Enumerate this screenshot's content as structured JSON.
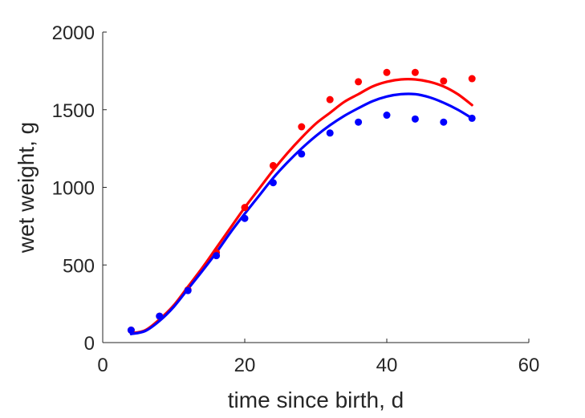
{
  "chart_data": {
    "type": "scatter",
    "title": "",
    "xlabel": "time since birth, d",
    "ylabel": "wet weight, g",
    "xlim": [
      0,
      60
    ],
    "ylim": [
      0,
      2000
    ],
    "xticks": [
      0,
      20,
      40,
      60
    ],
    "yticks": [
      0,
      500,
      1000,
      1500,
      2000
    ],
    "xtick_labels": [
      "0",
      "20",
      "40",
      "60"
    ],
    "ytick_labels": [
      "0",
      "500",
      "1000",
      "1500",
      "2000"
    ],
    "grid": false,
    "legend": "none",
    "series": [
      {
        "color": "#ff0000",
        "x": [
          4,
          8,
          12,
          16,
          20,
          24,
          28,
          32,
          36,
          40,
          44,
          48,
          52
        ],
        "y": [
          80,
          170,
          340,
          580,
          870,
          1140,
          1390,
          1565,
          1680,
          1740,
          1740,
          1685,
          1700
        ],
        "fit_x": [
          4,
          6,
          8,
          10,
          12,
          14,
          16,
          18,
          20,
          22,
          24,
          26,
          28,
          30,
          32,
          34,
          36,
          38,
          40,
          42,
          44,
          46,
          48,
          50,
          52
        ],
        "fit_y": [
          60,
          80,
          150,
          240,
          360,
          480,
          610,
          740,
          870,
          990,
          1110,
          1220,
          1320,
          1410,
          1480,
          1550,
          1600,
          1650,
          1680,
          1695,
          1695,
          1680,
          1650,
          1600,
          1530
        ]
      },
      {
        "color": "#0000ff",
        "x": [
          4,
          8,
          12,
          16,
          20,
          24,
          28,
          32,
          36,
          40,
          44,
          48,
          52
        ],
        "y": [
          80,
          170,
          335,
          560,
          800,
          1030,
          1215,
          1350,
          1420,
          1465,
          1440,
          1420,
          1445
        ],
        "fit_x": [
          4,
          6,
          8,
          10,
          12,
          14,
          16,
          18,
          20,
          22,
          24,
          26,
          28,
          30,
          32,
          34,
          36,
          38,
          40,
          42,
          44,
          46,
          48,
          50,
          52
        ],
        "fit_y": [
          55,
          75,
          140,
          230,
          345,
          460,
          580,
          710,
          830,
          945,
          1060,
          1160,
          1250,
          1330,
          1400,
          1460,
          1510,
          1555,
          1585,
          1600,
          1600,
          1580,
          1545,
          1500,
          1445
        ]
      }
    ]
  }
}
